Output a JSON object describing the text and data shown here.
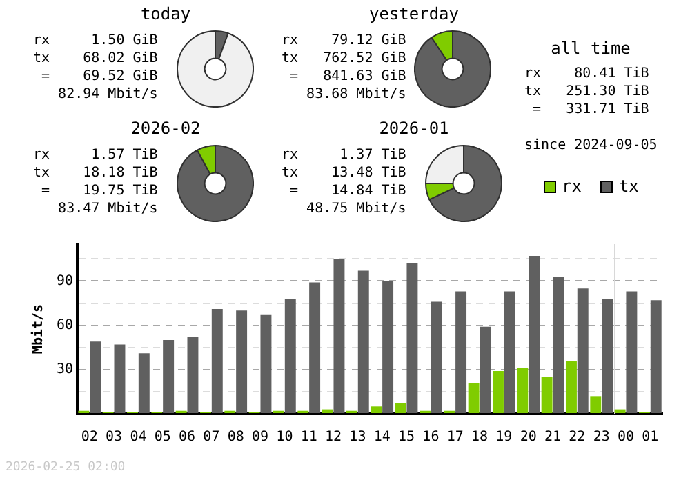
{
  "chart_data": [
    {
      "type": "donut",
      "title": "today",
      "categories": [
        null,
        null,
        null
      ],
      "values": [
        5.5,
        null,
        94.5
      ],
      "colors": [
        "#606060",
        "#80cc00",
        "#f0f0f0"
      ],
      "annotations": [
        "rx     1.50 GiB",
        "tx    68.02 GiB",
        " =    69.52 GiB",
        "   82.94 Mbit/s"
      ]
    },
    {
      "type": "donut",
      "title": "yesterday",
      "categories": [
        null,
        null
      ],
      "values": [
        90.6,
        9.4
      ],
      "colors": [
        "#606060",
        "#80cc00"
      ],
      "annotations": [
        "rx    79.12 GiB",
        "tx   762.52 GiB",
        " =   841.63 GiB",
        "   83.68 Mbit/s"
      ]
    },
    {
      "type": "donut",
      "title": "2026-02",
      "categories": [
        null,
        null
      ],
      "values": [
        92.1,
        7.9
      ],
      "colors": [
        "#606060",
        "#80cc00"
      ],
      "annotations": [
        "rx     1.57 TiB",
        "tx    18.18 TiB",
        " =    19.75 TiB",
        "   83.47 Mbit/s"
      ]
    },
    {
      "type": "donut",
      "title": "2026-01",
      "categories": [
        null,
        null,
        null
      ],
      "values": [
        68,
        7,
        25
      ],
      "colors": [
        "#606060",
        "#80cc00",
        "#f0f0f0"
      ],
      "annotations": [
        "rx     1.37 TiB",
        "tx    13.48 TiB",
        " =    14.84 TiB",
        "   48.75 Mbit/s"
      ]
    },
    {
      "type": "other",
      "title": "all time",
      "annotations": [
        "rx    80.41 TiB",
        "tx   251.30 TiB",
        " =   331.71 TiB",
        "since 2024-09-05"
      ]
    },
    {
      "type": "bar",
      "ylabel": "Mbit/s",
      "categories": [
        "02",
        "03",
        "04",
        "05",
        "06",
        "07",
        "08",
        "09",
        "10",
        "11",
        "12",
        "13",
        "14",
        "15",
        "16",
        "17",
        "18",
        "19",
        "20",
        "21",
        "22",
        "23",
        "00",
        "01"
      ],
      "series": [
        {
          "name": "rx",
          "color": "#80cc00",
          "values": [
            2,
            1,
            1,
            1,
            2,
            1,
            2,
            1,
            2,
            2,
            3,
            2,
            5,
            7,
            2,
            2,
            21,
            29,
            31,
            25,
            36,
            12,
            3,
            1
          ]
        },
        {
          "name": "tx",
          "color": "#606060",
          "values": [
            49,
            47,
            41,
            50,
            52,
            71,
            70,
            67,
            78,
            89,
            105,
            97,
            90,
            102,
            76,
            83,
            59,
            83,
            107,
            93,
            85,
            78,
            83,
            77
          ]
        }
      ],
      "ylim": [
        0,
        115
      ],
      "yticks": [
        {
          "value": 0,
          "label": null
        },
        {
          "value": 15,
          "label": null
        },
        30,
        {
          "value": 45,
          "label": null
        },
        60,
        {
          "value": 75,
          "label": null
        },
        90,
        {
          "value": 105,
          "label": null
        }
      ],
      "grid": "y",
      "legend": "top right",
      "ref_lines": [
        {
          "axis": "x",
          "value": "00",
          "color": "#d8d8d8"
        }
      ],
      "annotations": [
        "2026-02-25 02:00"
      ]
    }
  ]
}
